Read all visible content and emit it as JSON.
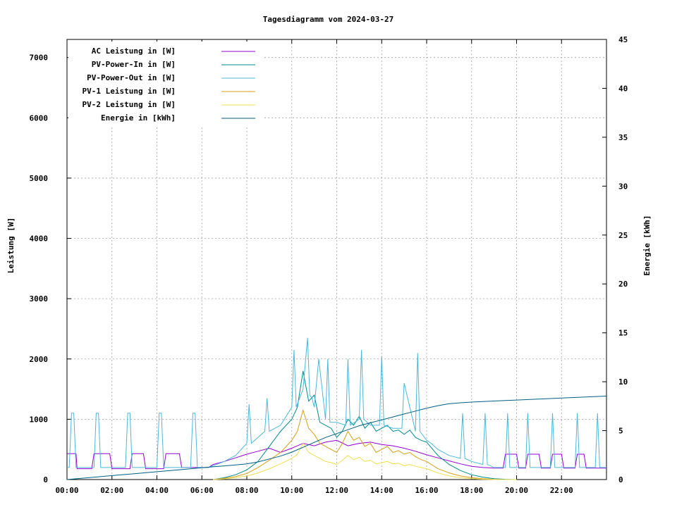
{
  "chart_data": {
    "type": "line",
    "title": "Tagesdiagramm vom 2024-03-27",
    "ylabel": "Leistung [W]",
    "y2label": "Energie [kWh]",
    "xlim": [
      0,
      24
    ],
    "ylim": [
      0,
      7300
    ],
    "y2lim": [
      0,
      45
    ],
    "x_ticks": [
      "00:00",
      "02:00",
      "04:00",
      "06:00",
      "08:00",
      "10:00",
      "12:00",
      "14:00",
      "16:00",
      "18:00",
      "20:00",
      "22:00"
    ],
    "x_tick_values": [
      0,
      2,
      4,
      6,
      8,
      10,
      12,
      14,
      16,
      18,
      20,
      22
    ],
    "y_ticks": [
      0,
      1000,
      2000,
      3000,
      4000,
      5000,
      6000,
      7000
    ],
    "y2_ticks": [
      0,
      5,
      10,
      15,
      20,
      25,
      30,
      35,
      40,
      45
    ],
    "grid": true,
    "legend_position": "top-left",
    "series": [
      {
        "name": "AC Leistung in [W]",
        "color": "#9400d3",
        "axis": "y",
        "x": [
          0,
          0.4,
          0.45,
          1.1,
          1.2,
          1.9,
          2.0,
          2.8,
          2.9,
          3.4,
          3.5,
          4.3,
          4.4,
          5.0,
          5.1,
          6.3,
          6.5,
          7.0,
          7.5,
          8.0,
          8.5,
          9.0,
          9.5,
          10.0,
          10.5,
          11.0,
          11.5,
          12.0,
          12.5,
          13.0,
          13.5,
          14.0,
          14.5,
          15.0,
          15.5,
          16.0,
          16.5,
          17.0,
          17.5,
          18.0,
          18.5,
          19.0,
          19.4,
          19.5,
          20.0,
          20.1,
          20.4,
          20.5,
          21.0,
          21.1,
          21.5,
          21.6,
          22.0,
          22.1,
          22.6,
          22.7,
          23.0,
          23.1,
          23.5,
          24
        ],
        "y": [
          430,
          430,
          180,
          180,
          430,
          430,
          180,
          180,
          430,
          430,
          180,
          180,
          430,
          430,
          200,
          200,
          250,
          300,
          360,
          420,
          470,
          520,
          450,
          520,
          600,
          560,
          620,
          650,
          560,
          600,
          620,
          580,
          560,
          520,
          470,
          410,
          360,
          310,
          260,
          220,
          200,
          190,
          190,
          420,
          420,
          190,
          190,
          420,
          420,
          190,
          190,
          420,
          420,
          190,
          190,
          420,
          420,
          190,
          190,
          190
        ]
      },
      {
        "name": "PV-Power-In in [W]",
        "color": "#008b8b",
        "axis": "y",
        "x": [
          6.5,
          7.0,
          7.5,
          8.0,
          8.5,
          9.0,
          9.5,
          10.0,
          10.25,
          10.5,
          10.75,
          11.0,
          11.25,
          11.5,
          11.75,
          12.0,
          12.25,
          12.5,
          12.75,
          13.0,
          13.25,
          13.5,
          13.75,
          14.0,
          14.25,
          14.5,
          14.75,
          15.0,
          15.25,
          15.5,
          15.75,
          16.0,
          16.5,
          17.0,
          17.5,
          18.0,
          18.5,
          19.0,
          19.5,
          20.0
        ],
        "y": [
          0,
          30,
          80,
          160,
          300,
          550,
          800,
          1000,
          1200,
          1800,
          1300,
          1400,
          950,
          900,
          850,
          700,
          800,
          1000,
          900,
          1050,
          850,
          950,
          800,
          850,
          900,
          800,
          820,
          750,
          820,
          700,
          650,
          620,
          400,
          250,
          150,
          80,
          40,
          15,
          5,
          0
        ]
      },
      {
        "name": "PV-Power-Out in [W]",
        "color": "#4cb8d8",
        "axis": "y",
        "x": [
          0,
          0.1,
          0.2,
          0.3,
          0.4,
          0.5,
          1.2,
          1.3,
          1.4,
          1.5,
          1.6,
          2.0,
          2.6,
          2.7,
          2.8,
          2.9,
          3.0,
          3.5,
          4.0,
          4.1,
          4.2,
          4.3,
          4.4,
          5.0,
          5.5,
          5.6,
          5.7,
          5.8,
          5.9,
          6.3,
          7.0,
          7.5,
          8.0,
          8.1,
          8.2,
          8.5,
          8.8,
          8.9,
          9.0,
          9.5,
          10.0,
          10.1,
          10.2,
          10.3,
          10.5,
          10.7,
          10.8,
          10.9,
          11.0,
          11.2,
          11.5,
          11.6,
          11.7,
          12.0,
          12.4,
          12.5,
          12.6,
          13.0,
          13.1,
          13.2,
          13.5,
          13.9,
          14.0,
          14.1,
          14.5,
          14.9,
          15.0,
          15.5,
          15.6,
          15.7,
          16.0,
          16.2,
          16.5,
          17.0,
          17.5,
          17.6,
          17.7,
          18.0,
          18.5,
          18.6,
          18.7,
          19.0,
          19.5,
          19.6,
          19.7,
          20.0,
          20.4,
          20.5,
          20.6,
          21.0,
          21.5,
          21.6,
          21.7,
          22.0,
          22.6,
          22.7,
          22.8,
          23.0,
          23.5,
          23.6,
          23.7,
          24
        ],
        "y": [
          200,
          200,
          1100,
          1100,
          200,
          200,
          200,
          1100,
          1100,
          200,
          200,
          200,
          200,
          1100,
          1100,
          200,
          200,
          200,
          200,
          1100,
          1100,
          200,
          200,
          200,
          200,
          1100,
          1100,
          200,
          200,
          200,
          300,
          400,
          600,
          1250,
          600,
          700,
          800,
          1350,
          800,
          900,
          1200,
          2150,
          1200,
          1300,
          1500,
          2350,
          1400,
          1350,
          1200,
          2000,
          1000,
          2000,
          950,
          950,
          900,
          2000,
          900,
          1000,
          2150,
          1000,
          900,
          900,
          2050,
          900,
          850,
          850,
          1600,
          800,
          2100,
          800,
          650,
          600,
          500,
          400,
          350,
          1100,
          350,
          300,
          250,
          1100,
          250,
          200,
          200,
          1100,
          200,
          200,
          200,
          1100,
          200,
          200,
          200,
          1100,
          200,
          200,
          200,
          1100,
          200,
          200,
          200,
          1100,
          200,
          200
        ]
      },
      {
        "name": "PV-1 Leistung in [W]",
        "color": "#d4a017",
        "axis": "y",
        "x": [
          6.5,
          7.0,
          7.5,
          8.0,
          8.5,
          9.0,
          9.5,
          10.0,
          10.25,
          10.5,
          10.75,
          11.0,
          11.25,
          11.5,
          11.75,
          12.0,
          12.25,
          12.5,
          12.75,
          13.0,
          13.25,
          13.5,
          13.75,
          14.0,
          14.25,
          14.5,
          14.75,
          15.0,
          15.25,
          15.5,
          15.75,
          16.0,
          16.5,
          17.0,
          17.5,
          18.0,
          18.5,
          19.0,
          19.5,
          20.0
        ],
        "y": [
          0,
          20,
          50,
          100,
          200,
          320,
          450,
          650,
          800,
          1150,
          850,
          750,
          600,
          550,
          500,
          450,
          600,
          800,
          650,
          700,
          550,
          600,
          450,
          500,
          550,
          450,
          480,
          420,
          450,
          380,
          330,
          300,
          180,
          110,
          60,
          30,
          15,
          5,
          0,
          0
        ]
      },
      {
        "name": "PV-2 Leistung in [W]",
        "color": "#f0e050",
        "axis": "y",
        "x": [
          6.5,
          7.0,
          7.5,
          8.0,
          8.5,
          9.0,
          9.5,
          10.0,
          10.25,
          10.5,
          10.75,
          11.0,
          11.25,
          11.5,
          11.75,
          12.0,
          12.25,
          12.5,
          12.75,
          13.0,
          13.25,
          13.5,
          13.75,
          14.0,
          14.25,
          14.5,
          14.75,
          15.0,
          15.25,
          15.5,
          15.75,
          16.0,
          16.5,
          17.0,
          17.5,
          18.0,
          18.5,
          19.0,
          19.5,
          20.0
        ],
        "y": [
          0,
          10,
          30,
          60,
          110,
          180,
          260,
          350,
          420,
          600,
          450,
          400,
          350,
          300,
          280,
          250,
          320,
          400,
          330,
          370,
          300,
          320,
          260,
          280,
          300,
          260,
          270,
          230,
          250,
          220,
          200,
          180,
          110,
          60,
          30,
          15,
          5,
          0,
          0,
          0
        ]
      },
      {
        "name": "Energie in [kWh]",
        "color": "#006080",
        "axis": "y2",
        "x": [
          0,
          1,
          2,
          3,
          4,
          5,
          6,
          6.5,
          7,
          7.5,
          8,
          8.5,
          9,
          9.5,
          10,
          10.5,
          11,
          11.5,
          12,
          12.5,
          13,
          13.5,
          14,
          14.5,
          15,
          15.5,
          16,
          16.5,
          17,
          17.5,
          18,
          18.5,
          19,
          19.5,
          20,
          21,
          22,
          23,
          24
        ],
        "y": [
          0,
          0.2,
          0.4,
          0.6,
          0.8,
          1.0,
          1.2,
          1.3,
          1.4,
          1.5,
          1.6,
          1.8,
          2.1,
          2.4,
          2.8,
          3.3,
          3.8,
          4.3,
          4.7,
          5.1,
          5.5,
          5.8,
          6.1,
          6.4,
          6.7,
          7.0,
          7.3,
          7.55,
          7.75,
          7.85,
          7.92,
          7.98,
          8.03,
          8.08,
          8.13,
          8.23,
          8.33,
          8.43,
          8.53
        ]
      }
    ]
  }
}
